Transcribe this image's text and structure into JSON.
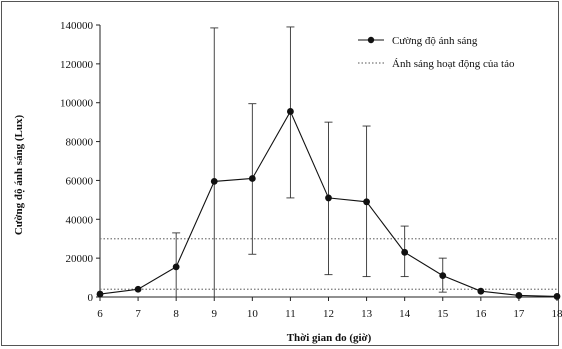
{
  "chart_data": {
    "type": "line",
    "title": "",
    "xlabel": "Thời gian đo (giờ)",
    "ylabel": "Cường độ ánh sáng (Lux)",
    "x": [
      6,
      7,
      8,
      9,
      10,
      11,
      12,
      13,
      14,
      15,
      16,
      17,
      18
    ],
    "xlim": [
      6,
      18
    ],
    "ylim": [
      0,
      140000
    ],
    "yticks": [
      0,
      20000,
      40000,
      60000,
      80000,
      100000,
      120000,
      140000
    ],
    "ytick_labels": [
      "0",
      "20000",
      "40000",
      "60000",
      "80000",
      "100000",
      "120000",
      "140000"
    ],
    "xtick_labels": [
      "6",
      "7",
      "8",
      "9",
      "10",
      "11",
      "12",
      "13",
      "14",
      "15",
      "16",
      "17",
      "18"
    ],
    "grid": false,
    "legend": "top-right",
    "series": [
      {
        "name": "Cường độ ánh sáng",
        "style": "solid-line-with-dot-markers",
        "color": "#111111",
        "values": [
          1500,
          4000,
          15500,
          59500,
          61000,
          95500,
          51000,
          49000,
          23000,
          11000,
          3000,
          800,
          300
        ],
        "error_low": [
          0,
          0,
          0,
          0,
          22000,
          51000,
          11500,
          10500,
          10500,
          2500,
          0,
          0,
          0
        ],
        "error_high": [
          0,
          0,
          33000,
          138500,
          99500,
          139000,
          90000,
          88000,
          36500,
          20000,
          0,
          0,
          0
        ]
      },
      {
        "name": "Ánh sáng hoạt động của tảo",
        "style": "dotted-horizontal-lines",
        "color": "#777777",
        "levels": [
          30000,
          4000
        ]
      }
    ]
  }
}
